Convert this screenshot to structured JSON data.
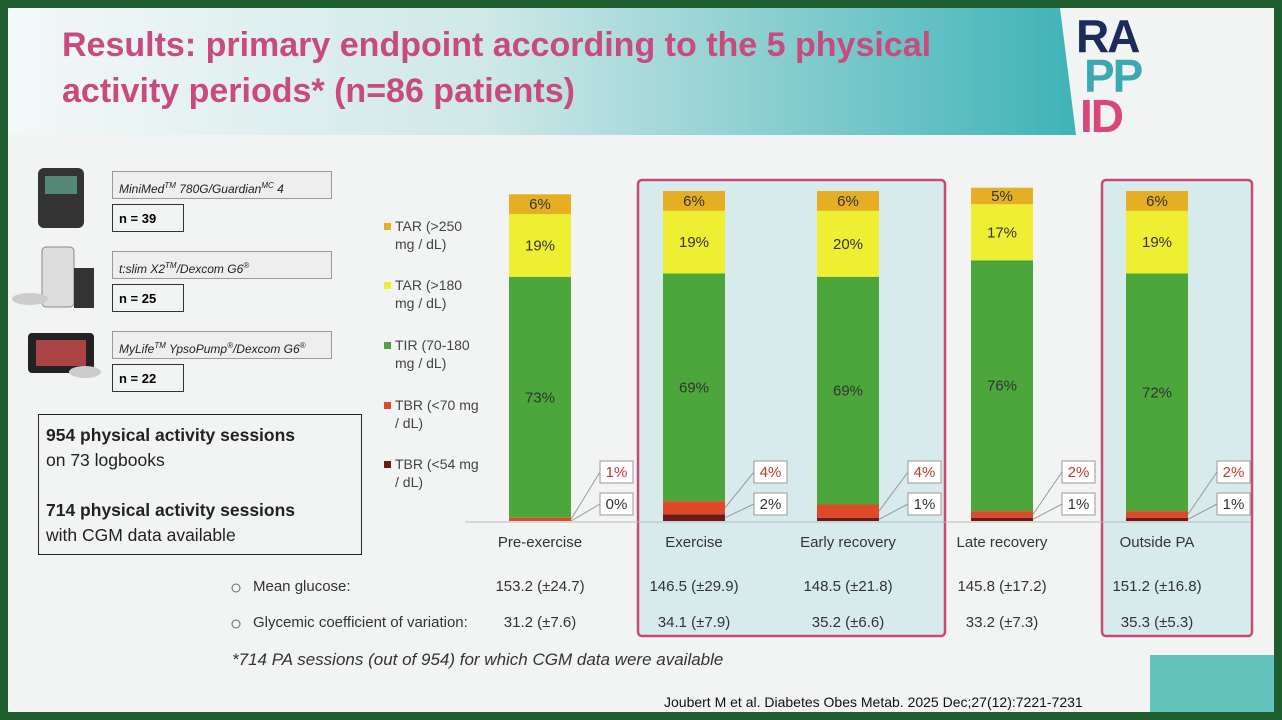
{
  "header": {
    "title": "Results: primary endpoint according to the 5 physical activity periods* (n=86 patients)",
    "logo": [
      "RA",
      "PP",
      "ID"
    ]
  },
  "devices": [
    {
      "name": [
        "MiniMed",
        "TM",
        " 780G/Guardian",
        "MC",
        " 4"
      ],
      "n": "n = 39"
    },
    {
      "name": [
        "t:slim X2",
        "TM",
        "/Dexcom G6",
        "®"
      ],
      "n": "n = 25"
    },
    {
      "name": [
        "MyLife",
        "TM",
        " YpsoPump",
        "®",
        "/Dexcom G6",
        "®"
      ],
      "n": "n = 22"
    }
  ],
  "sessions": [
    "954 physical activity sessions",
    "on 73 logbooks",
    "714 physical activity sessions",
    "with CGM data available"
  ],
  "chart_data": {
    "type": "stacked_bar",
    "categories": [
      "Pre-exercise",
      "Exercise",
      "Early recovery",
      "Late recovery",
      "Outside PA"
    ],
    "series": [
      {
        "name": "TBR (<54 mg / dL)",
        "color": "#6b1a1a",
        "values": [
          0,
          2,
          1,
          1,
          1
        ],
        "value_labels": [
          "0%",
          "2%",
          "1%",
          "1%",
          "1%"
        ]
      },
      {
        "name": "TBR (<70 mg / dL)",
        "color": "#e0482a",
        "values": [
          1,
          4,
          4,
          2,
          2
        ],
        "value_labels": [
          "1%",
          "4%",
          "4%",
          "2%",
          "2%"
        ]
      },
      {
        "name": "TIR (70-180 mg / dL)",
        "color": "#4ca63c",
        "values": [
          73,
          69,
          69,
          76,
          72
        ],
        "value_labels": [
          "73%",
          "69%",
          "69%",
          "76%",
          "72%"
        ]
      },
      {
        "name": "TAR (>180 mg / dL)",
        "color": "#eeee33",
        "values": [
          19,
          19,
          20,
          17,
          19
        ],
        "value_labels": [
          "19%",
          "19%",
          "20%",
          "17%",
          "19%"
        ]
      },
      {
        "name": "TAR (>250 mg / dL)",
        "color": "#e6ae22",
        "values": [
          6,
          6,
          6,
          5,
          6
        ],
        "value_labels": [
          "6%",
          "6%",
          "6%",
          "5%",
          "6%"
        ]
      }
    ]
  },
  "stats": [
    {
      "label": "Mean glucose:",
      "values": [
        "153.2 (±24.7)",
        "146.5 (±29.9)",
        "148.5 (±21.8)",
        "145.8 (±17.2)",
        "151.2 (±16.8)"
      ]
    },
    {
      "label": "Glycemic coefficient of variation:",
      "values": [
        "31.2 (±7.6)",
        "34.1 (±7.9)",
        "35.2 (±6.6)",
        "33.2 (±7.3)",
        "35.3 (±5.3)"
      ]
    }
  ],
  "footnote": "*714 PA sessions (out of 954) for which CGM data were available",
  "citation": "Joubert M et al. Diabetes Obes Metab. 2025 Dec;27(12):7221-7231"
}
